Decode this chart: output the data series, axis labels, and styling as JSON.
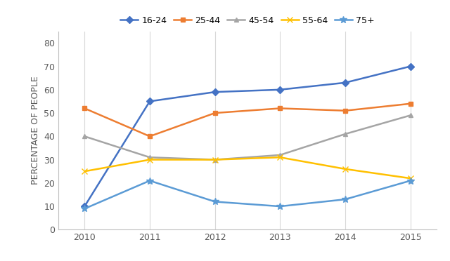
{
  "years": [
    2010,
    2011,
    2012,
    2013,
    2014,
    2015
  ],
  "series": {
    "16-24": {
      "values": [
        10,
        55,
        59,
        60,
        63,
        70
      ],
      "color": "#4472C4",
      "marker": "D",
      "markersize": 5,
      "linewidth": 1.8
    },
    "25-44": {
      "values": [
        52,
        40,
        50,
        52,
        51,
        54
      ],
      "color": "#ED7D31",
      "marker": "s",
      "markersize": 5,
      "linewidth": 1.8
    },
    "45-54": {
      "values": [
        40,
        31,
        30,
        32,
        41,
        49
      ],
      "color": "#A5A5A5",
      "marker": "^",
      "markersize": 5,
      "linewidth": 1.8
    },
    "55-64": {
      "values": [
        25,
        30,
        30,
        31,
        26,
        22
      ],
      "color": "#FFC000",
      "marker": "x",
      "markersize": 6,
      "linewidth": 1.8
    },
    "75+": {
      "values": [
        9,
        21,
        12,
        10,
        13,
        21
      ],
      "color": "#5B9BD5",
      "marker": "*",
      "markersize": 7,
      "linewidth": 1.8
    }
  },
  "ylabel": "PERCENTAGE OF PEOPLE",
  "ylim": [
    0,
    85
  ],
  "yticks": [
    0,
    10,
    20,
    30,
    40,
    50,
    60,
    70,
    80
  ],
  "xlim": [
    2009.6,
    2015.4
  ],
  "xticks": [
    2010,
    2011,
    2012,
    2013,
    2014,
    2015
  ],
  "grid_color": "#D9D9D9",
  "background_color": "#FFFFFF",
  "legend_order": [
    "16-24",
    "25-44",
    "45-54",
    "55-64",
    "75+"
  ],
  "tick_fontsize": 9,
  "ylabel_fontsize": 9,
  "legend_fontsize": 9
}
